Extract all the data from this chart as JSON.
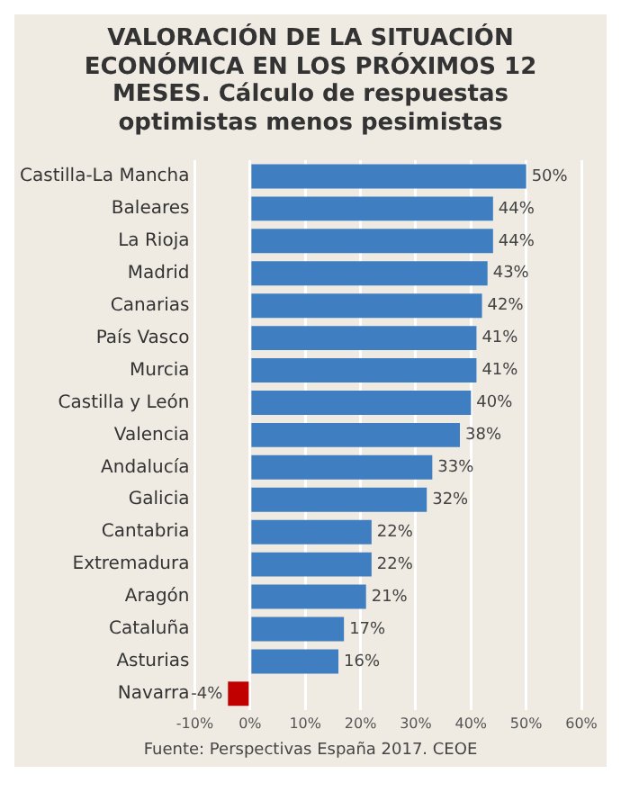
{
  "chart_data": {
    "type": "bar",
    "orientation": "horizontal",
    "title": "VALORACIÓN DE LA SITUACIÓN ECONÓMICA EN LOS PRÓXIMOS 12 MESES. Cálculo de respuestas optimistas menos pesimistas",
    "categories": [
      "Castilla-La Mancha",
      "Baleares",
      "La Rioja",
      "Madrid",
      "Canarias",
      "País Vasco",
      "Murcia",
      "Castilla y León",
      "Valencia",
      "Andalucía",
      "Galicia",
      "Cantabria",
      "Extremadura",
      "Aragón",
      "Cataluña",
      "Asturias",
      "Navarra"
    ],
    "values": [
      50,
      44,
      44,
      43,
      42,
      41,
      41,
      40,
      38,
      33,
      32,
      22,
      22,
      21,
      17,
      16,
      -4
    ],
    "value_labels": [
      "50%",
      "44%",
      "44%",
      "43%",
      "42%",
      "41%",
      "41%",
      "40%",
      "38%",
      "33%",
      "32%",
      "22%",
      "22%",
      "21%",
      "17%",
      "16%",
      "-4%"
    ],
    "colors": [
      "#3f7fc1",
      "#3f7fc1",
      "#3f7fc1",
      "#3f7fc1",
      "#3f7fc1",
      "#3f7fc1",
      "#3f7fc1",
      "#3f7fc1",
      "#3f7fc1",
      "#3f7fc1",
      "#3f7fc1",
      "#3f7fc1",
      "#3f7fc1",
      "#3f7fc1",
      "#3f7fc1",
      "#3f7fc1",
      "#c00000"
    ],
    "xlim": [
      -10,
      60
    ],
    "xticks": [
      {
        "value": -10,
        "label": "-10%"
      },
      {
        "value": 0,
        "label": "0%"
      },
      {
        "value": 10,
        "label": "10%"
      },
      {
        "value": 20,
        "label": "20%"
      },
      {
        "value": 30,
        "label": "30%"
      },
      {
        "value": 40,
        "label": "40%"
      },
      {
        "value": 50,
        "label": "50%"
      },
      {
        "value": 60,
        "label": "60%"
      }
    ],
    "grid": "x",
    "annotations": [
      "Fuente: Perspectivas España 2017. CEOE"
    ]
  }
}
